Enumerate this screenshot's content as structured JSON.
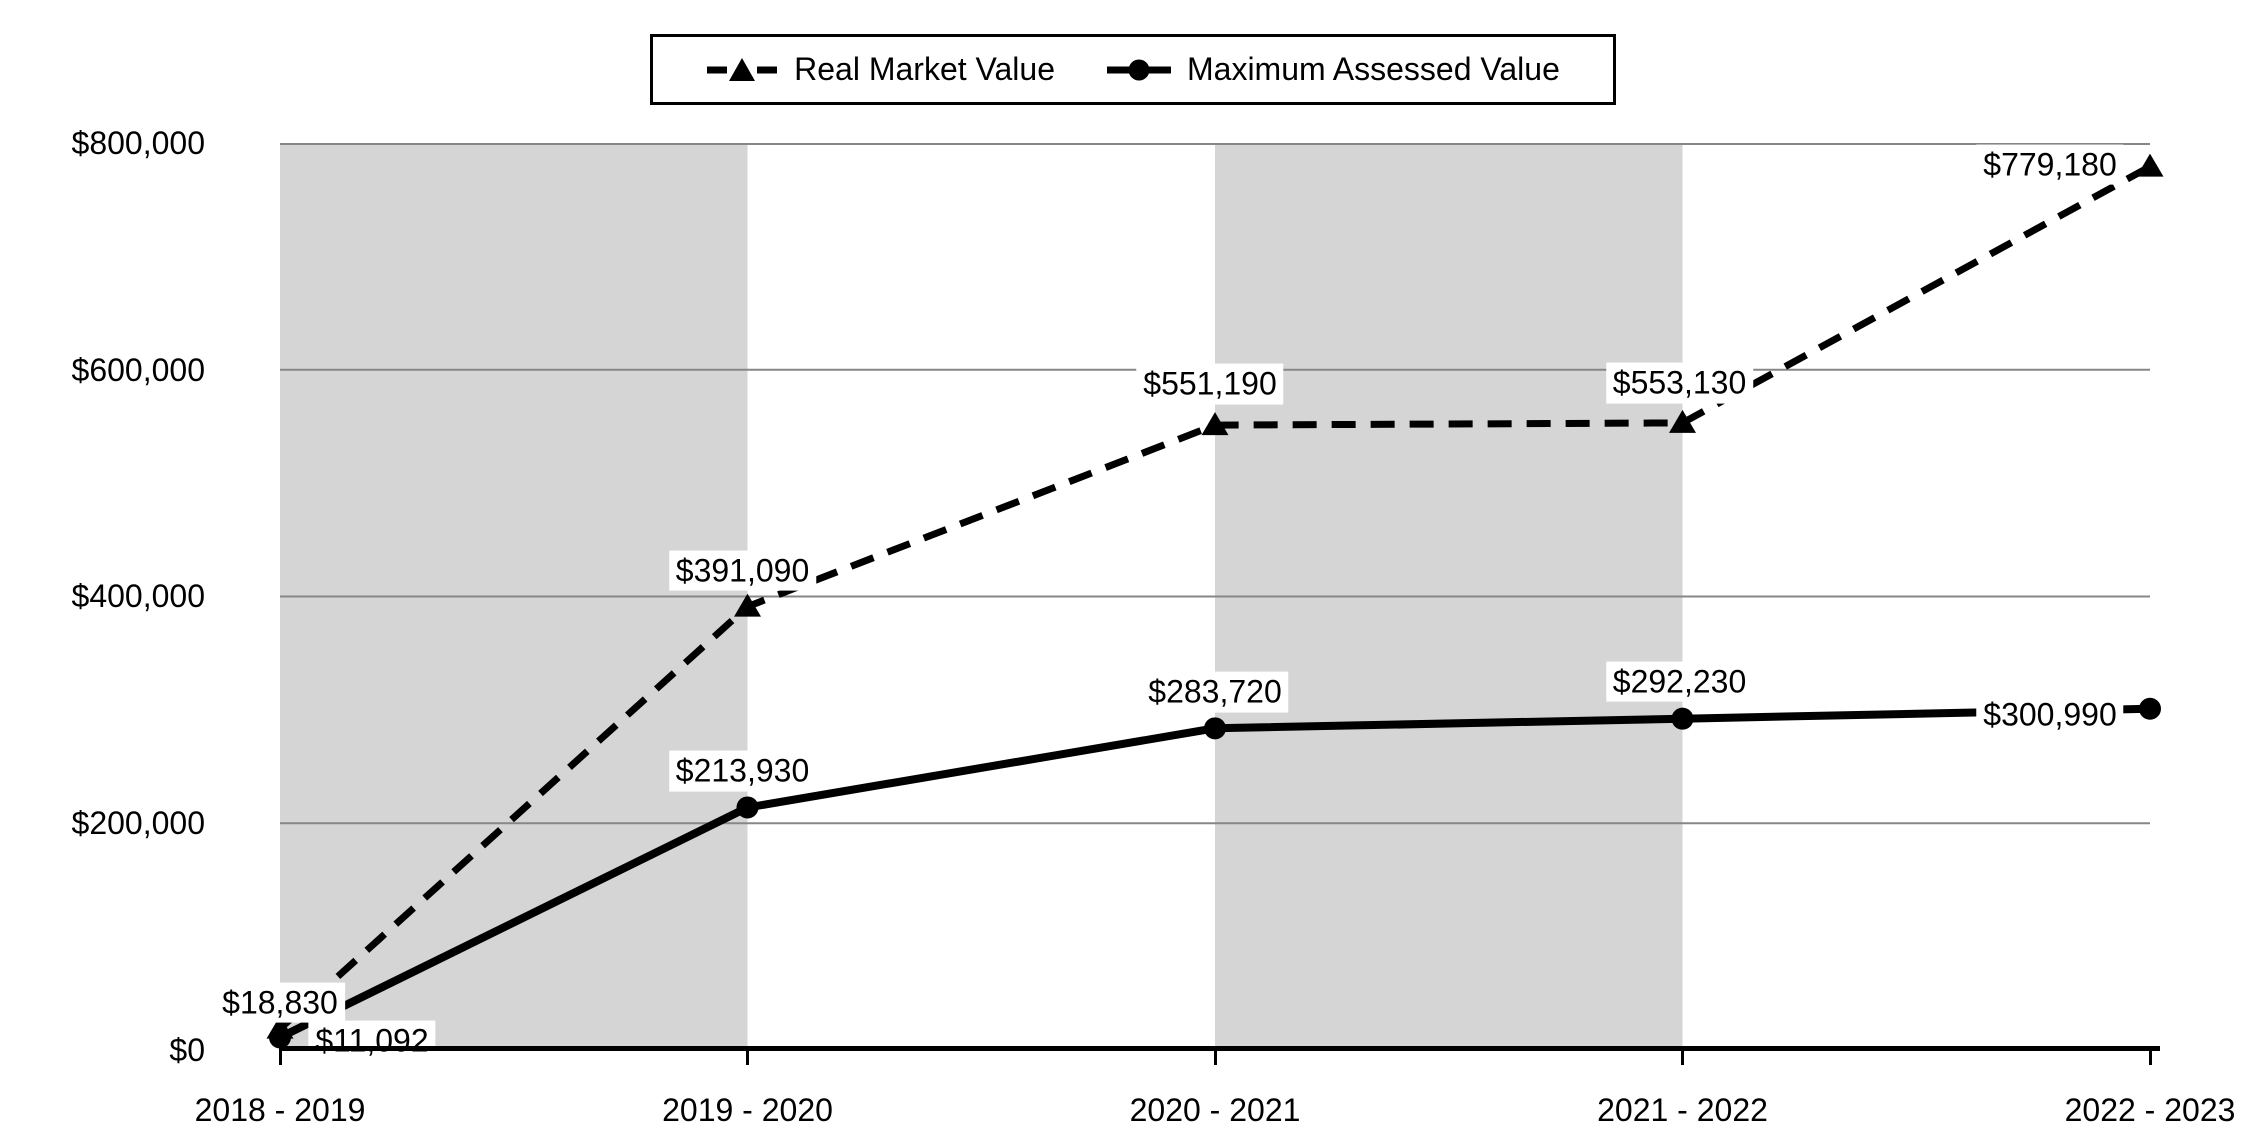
{
  "chart_data": {
    "type": "line",
    "categories": [
      "2018 - 2019",
      "2019 - 2020",
      "2020 - 2021",
      "2021 - 2022",
      "2022 - 2023"
    ],
    "y_ticks": [
      "$0",
      "$200,000",
      "$400,000",
      "$600,000",
      "$800,000"
    ],
    "ylim": [
      0,
      800000
    ],
    "grid": true,
    "legend_position": "top-center",
    "plot_bands": "alternating gray stripes between category intervals (gray, white, gray, white)",
    "series": [
      {
        "name": "Real Market Value",
        "marker": "triangle",
        "line_style": "dashed",
        "color": "#000000",
        "values": [
          18830,
          391090,
          551190,
          553130,
          779180
        ],
        "labels": [
          "$18,830",
          "$391,090",
          "$551,190",
          "$553,130",
          "$779,180"
        ],
        "label_offsets": [
          [
            0,
            -26
          ],
          [
            -5,
            -36
          ],
          [
            -5,
            -41
          ],
          [
            -3,
            -40
          ],
          [
            -100,
            -2
          ]
        ]
      },
      {
        "name": "Maximum Assessed Value",
        "marker": "circle",
        "line_style": "solid",
        "color": "#000000",
        "values": [
          11092,
          213930,
          283720,
          292230,
          300990
        ],
        "labels": [
          "$11,092",
          "$213,930",
          "$283,720",
          "$292,230",
          "$300,990"
        ],
        "label_offsets": [
          [
            92,
            4
          ],
          [
            -5,
            -36
          ],
          [
            0,
            -36
          ],
          [
            -3,
            -37
          ],
          [
            -100,
            6
          ]
        ]
      }
    ]
  },
  "colors": {
    "band": "#d5d5d5",
    "gridline": "#878787",
    "axiscolor": "#000000",
    "labelbg": "#ffffff",
    "bg": "#ffffff",
    "text": "#000000"
  }
}
